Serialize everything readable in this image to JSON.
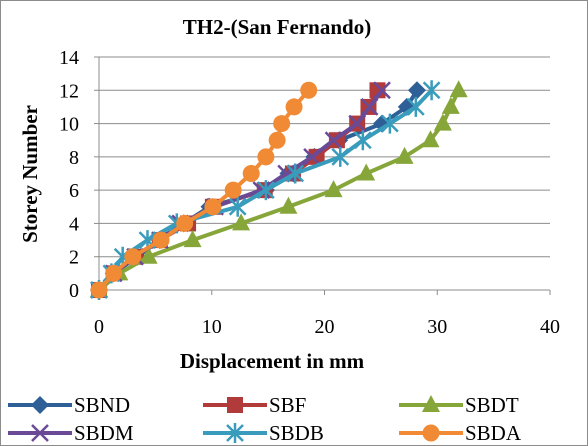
{
  "chart_data": {
    "type": "line",
    "title": "TH2-(San Fernando)",
    "xlabel": "Displacement in mm",
    "ylabel": "Storey Number",
    "xlim": [
      0,
      40
    ],
    "ylim": [
      0,
      14
    ],
    "x_ticks": [
      0,
      10,
      20,
      30,
      40
    ],
    "y_ticks": [
      0,
      2,
      4,
      6,
      8,
      10,
      12,
      14
    ],
    "grid": "horizontal",
    "legend_position": "bottom",
    "series": [
      {
        "name": "SBND",
        "color": "#2e5f97",
        "marker": "diamond",
        "points": [
          [
            0,
            0
          ],
          [
            1.3,
            1
          ],
          [
            3.4,
            2
          ],
          [
            5.4,
            3
          ],
          [
            7.5,
            4
          ],
          [
            9.8,
            5
          ],
          [
            14.8,
            6
          ],
          [
            16.8,
            7
          ],
          [
            19.1,
            8
          ],
          [
            21.3,
            9
          ],
          [
            25.1,
            10
          ],
          [
            27.3,
            11
          ],
          [
            28.2,
            12
          ]
        ]
      },
      {
        "name": "SBF",
        "color": "#b13a3a",
        "marker": "square",
        "points": [
          [
            0,
            0
          ],
          [
            1.3,
            1
          ],
          [
            3.2,
            2
          ],
          [
            5.4,
            3
          ],
          [
            7.9,
            4
          ],
          [
            10.1,
            5
          ],
          [
            14.7,
            6
          ],
          [
            17.2,
            7
          ],
          [
            19.3,
            8
          ],
          [
            21.1,
            9
          ],
          [
            22.9,
            10
          ],
          [
            23.9,
            11
          ],
          [
            24.7,
            12
          ]
        ]
      },
      {
        "name": "SBDT",
        "color": "#86a63a",
        "marker": "triangle",
        "points": [
          [
            0,
            0
          ],
          [
            1.8,
            1
          ],
          [
            4.4,
            2
          ],
          [
            8.3,
            3
          ],
          [
            12.6,
            4
          ],
          [
            16.8,
            5
          ],
          [
            20.8,
            6
          ],
          [
            23.7,
            7
          ],
          [
            27.1,
            8
          ],
          [
            29.4,
            9
          ],
          [
            30.5,
            10
          ],
          [
            31.2,
            11
          ],
          [
            31.9,
            12
          ]
        ]
      },
      {
        "name": "SBDM",
        "color": "#6a4a96",
        "marker": "x",
        "points": [
          [
            0,
            0
          ],
          [
            1.3,
            1
          ],
          [
            3.2,
            2
          ],
          [
            5.4,
            3
          ],
          [
            7.2,
            4
          ],
          [
            10.3,
            5
          ],
          [
            14.4,
            6
          ],
          [
            16.6,
            7
          ],
          [
            18.9,
            8
          ],
          [
            20.8,
            9
          ],
          [
            22.9,
            10
          ],
          [
            24.0,
            11
          ],
          [
            25.1,
            12
          ]
        ]
      },
      {
        "name": "SBDB",
        "color": "#3a9cbc",
        "marker": "asterisk",
        "points": [
          [
            0,
            0
          ],
          [
            1.1,
            1
          ],
          [
            2.1,
            2
          ],
          [
            4.3,
            3
          ],
          [
            6.9,
            4
          ],
          [
            12.3,
            5
          ],
          [
            14.8,
            6
          ],
          [
            17.4,
            7
          ],
          [
            21.4,
            8
          ],
          [
            23.4,
            9
          ],
          [
            25.8,
            10
          ],
          [
            28.1,
            11
          ],
          [
            29.5,
            12
          ]
        ]
      },
      {
        "name": "SBDA",
        "color": "#f08a34",
        "marker": "circle",
        "points": [
          [
            0,
            0
          ],
          [
            1.3,
            1
          ],
          [
            3.0,
            2
          ],
          [
            5.5,
            3
          ],
          [
            7.6,
            4
          ],
          [
            10.1,
            5
          ],
          [
            11.9,
            6
          ],
          [
            13.5,
            7
          ],
          [
            14.8,
            8
          ],
          [
            15.8,
            9
          ],
          [
            16.2,
            10
          ],
          [
            17.3,
            11
          ],
          [
            18.6,
            12
          ]
        ]
      }
    ]
  }
}
